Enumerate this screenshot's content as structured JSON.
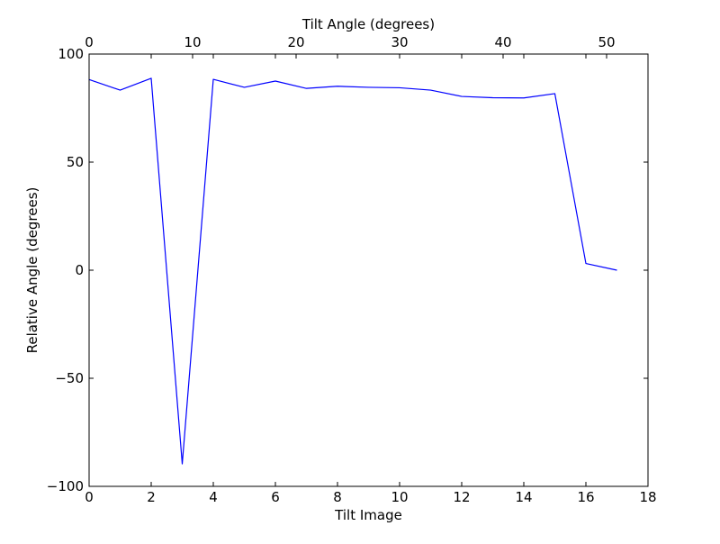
{
  "chart_data": {
    "type": "line",
    "xlabel": "Tilt Image",
    "x2label": "Tilt Angle (degrees)",
    "ylabel": "Relative Angle (degrees)",
    "xlim": [
      0,
      18
    ],
    "x2lim": [
      0,
      54
    ],
    "ylim": [
      -100,
      100
    ],
    "x_ticks": [
      0,
      2,
      4,
      6,
      8,
      10,
      12,
      14,
      16,
      18
    ],
    "x2_ticks": [
      0,
      10,
      20,
      30,
      40,
      50
    ],
    "y_ticks": [
      -100,
      -50,
      0,
      50,
      100
    ],
    "x_tick_labels": [
      "0",
      "2",
      "4",
      "6",
      "8",
      "10",
      "12",
      "14",
      "16",
      "18"
    ],
    "x2_tick_labels": [
      "0",
      "10",
      "20",
      "30",
      "40",
      "50"
    ],
    "y_tick_labels": [
      "−100",
      "−50",
      "0",
      "50",
      "100"
    ],
    "grid": false,
    "series": [
      {
        "color": "#0000ff",
        "x": [
          0,
          1,
          2,
          3,
          4,
          5,
          6,
          7,
          8,
          9,
          10,
          11,
          12,
          13,
          14,
          15,
          16,
          17
        ],
        "y": [
          88.2,
          83.3,
          88.8,
          -89.6,
          88.3,
          84.6,
          87.5,
          84.1,
          85.1,
          84.6,
          84.4,
          83.3,
          80.4,
          79.8,
          79.7,
          81.7,
          3.1,
          0.0
        ]
      }
    ]
  }
}
